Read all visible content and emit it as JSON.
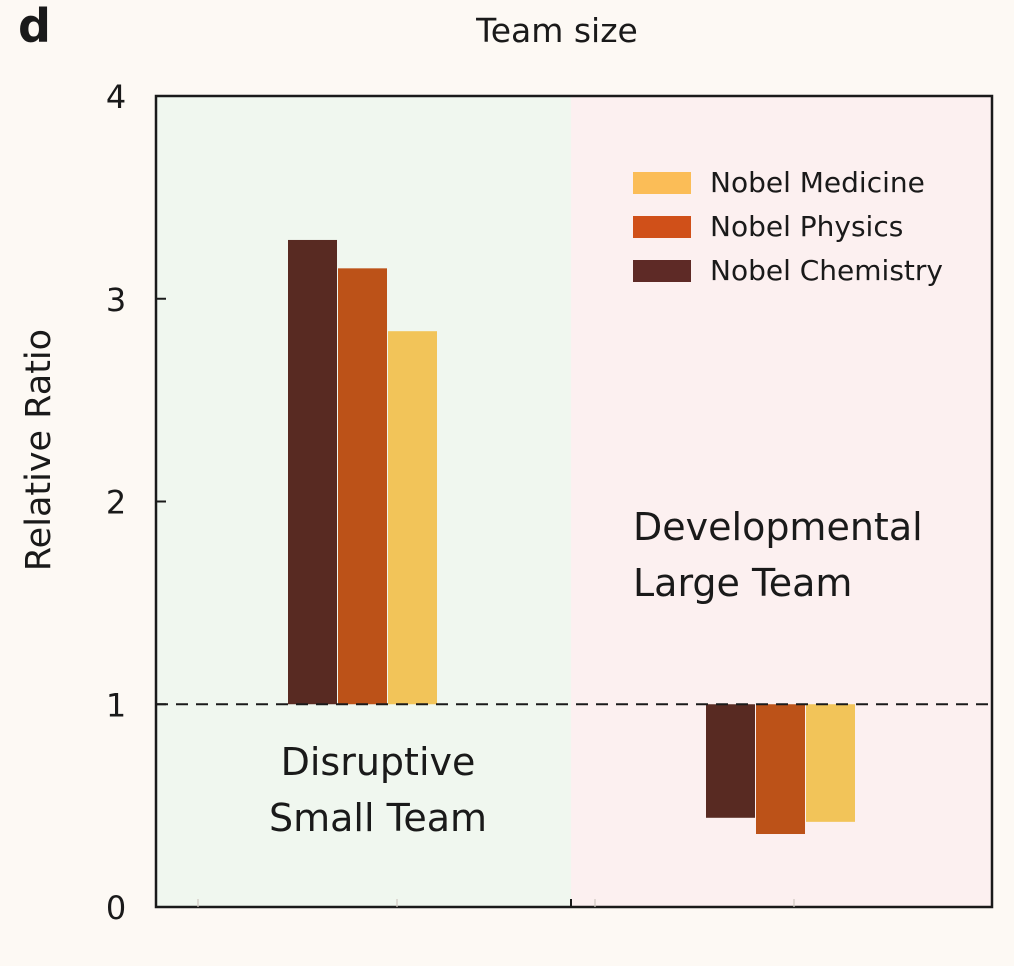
{
  "panel_label": "d",
  "chart_data": {
    "type": "bar",
    "title": "Team size",
    "ylabel": "Relative Ratio",
    "ylim": [
      0,
      4
    ],
    "yticks": [
      0,
      1,
      2,
      3,
      4
    ],
    "grid": false,
    "reference_line": 1,
    "legend_position": "top-right",
    "categories": [
      "Disruptive Small Team",
      "Developmental Large Team"
    ],
    "category_labels": [
      [
        "Disruptive",
        "Small Team"
      ],
      [
        "Developmental",
        "Large Team"
      ]
    ],
    "region_colors": [
      "#f0f7ef",
      "#fcf0f0"
    ],
    "series": [
      {
        "name": "Nobel Chemistry",
        "color": "#582a22",
        "values": [
          3.29,
          0.44
        ]
      },
      {
        "name": "Nobel Physics",
        "color": "#bc5218",
        "values": [
          3.15,
          0.36
        ]
      },
      {
        "name": "Nobel Medicine",
        "color": "#f2c459",
        "values": [
          2.84,
          0.42
        ]
      }
    ],
    "legend_order": [
      "Nobel Medicine",
      "Nobel Physics",
      "Nobel Chemistry"
    ],
    "legend_colors": [
      "#fbbd57",
      "#d05019",
      "#5e2a26"
    ]
  }
}
